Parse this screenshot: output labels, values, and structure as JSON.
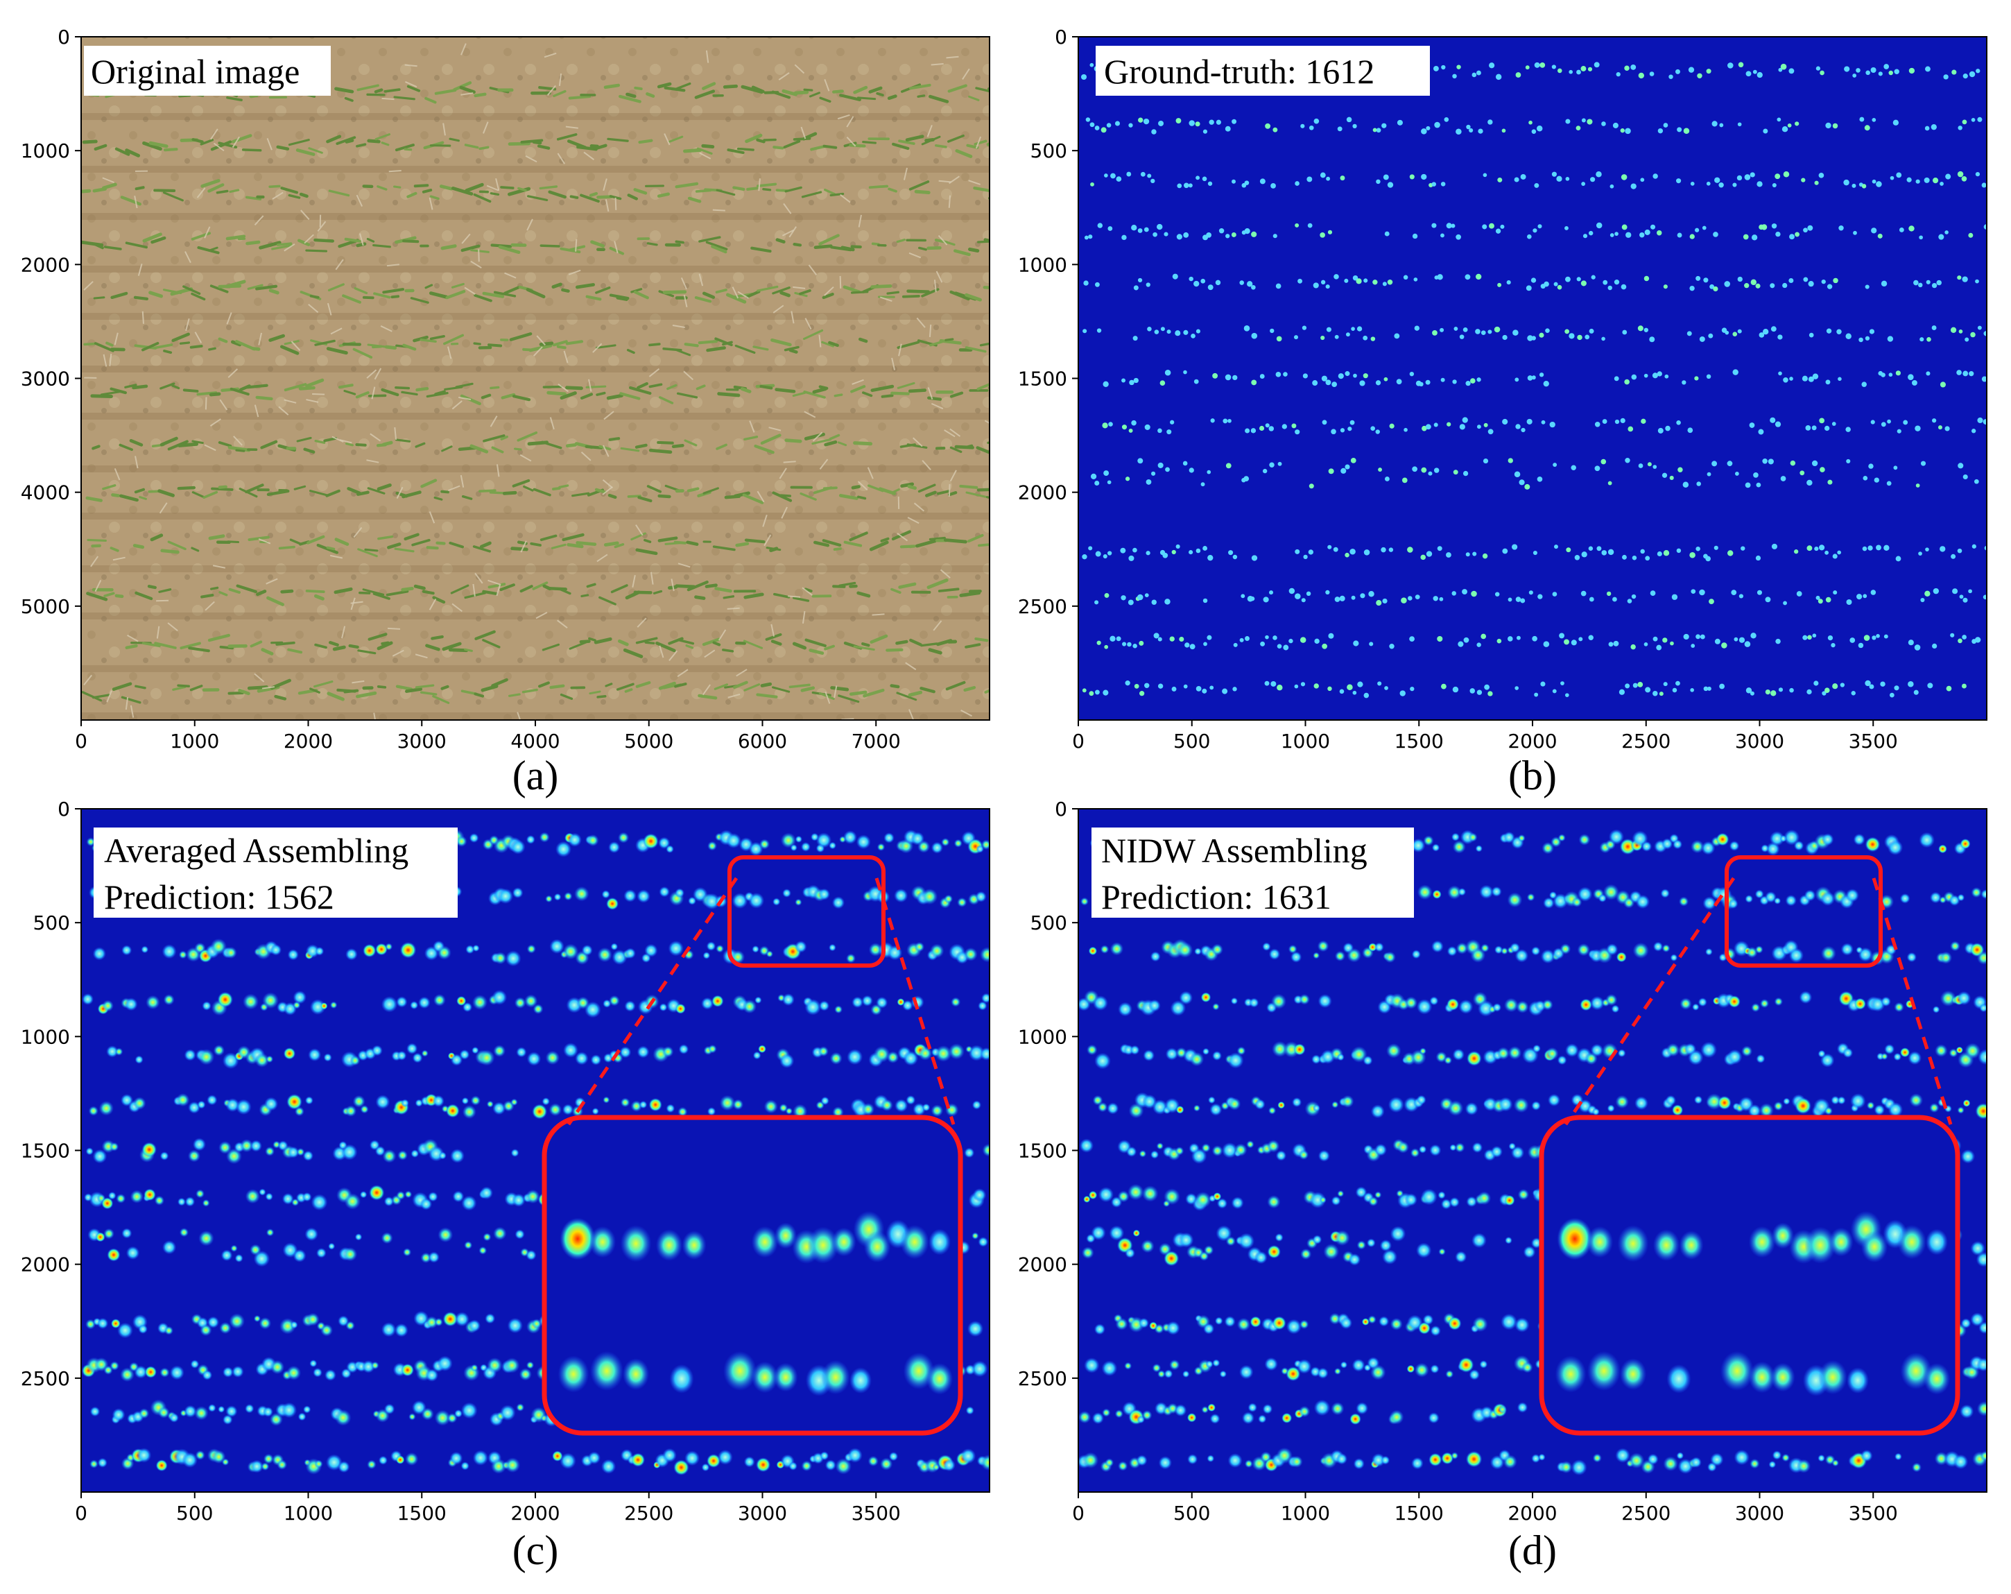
{
  "panels": [
    {
      "id": "a",
      "caption": "(a)",
      "labels": [
        "Original image"
      ],
      "xticks": [
        "0",
        "1000",
        "2000",
        "3000",
        "4000",
        "5000",
        "6000",
        "7000"
      ],
      "yticks": [
        "0",
        "1000",
        "2000",
        "3000",
        "4000",
        "5000"
      ],
      "xmax": 8000,
      "ymax": 6000,
      "xtick_values": [
        0,
        1000,
        2000,
        3000,
        4000,
        5000,
        6000,
        7000
      ],
      "ytick_values": [
        0,
        1000,
        2000,
        3000,
        4000,
        5000
      ]
    },
    {
      "id": "b",
      "caption": "(b)",
      "labels": [
        "Ground-truth: 1612"
      ],
      "xticks": [
        "0",
        "500",
        "1000",
        "1500",
        "2000",
        "2500",
        "3000",
        "3500"
      ],
      "yticks": [
        "0",
        "500",
        "1000",
        "1500",
        "2000",
        "2500"
      ],
      "xmax": 4000,
      "ymax": 3000,
      "xtick_values": [
        0,
        500,
        1000,
        1500,
        2000,
        2500,
        3000,
        3500
      ],
      "ytick_values": [
        0,
        500,
        1000,
        1500,
        2000,
        2500
      ]
    },
    {
      "id": "c",
      "caption": "(c)",
      "labels": [
        "Averaged Assembling",
        "Prediction: 1562"
      ],
      "xticks": [
        "0",
        "500",
        "1000",
        "1500",
        "2000",
        "2500",
        "3000",
        "3500"
      ],
      "yticks": [
        "0",
        "500",
        "1000",
        "1500",
        "2000",
        "2500"
      ],
      "xmax": 4000,
      "ymax": 3000,
      "xtick_values": [
        0,
        500,
        1000,
        1500,
        2000,
        2500,
        3000,
        3500
      ],
      "ytick_values": [
        0,
        500,
        1000,
        1500,
        2000,
        2500
      ]
    },
    {
      "id": "d",
      "caption": "(d)",
      "labels": [
        "NIDW Assembling",
        "Prediction: 1631"
      ],
      "xticks": [
        "0",
        "500",
        "1000",
        "1500",
        "2000",
        "2500",
        "3000",
        "3500"
      ],
      "yticks": [
        "0",
        "500",
        "1000",
        "1500",
        "2000",
        "2500"
      ],
      "xmax": 4000,
      "ymax": 3000,
      "xtick_values": [
        0,
        500,
        1000,
        1500,
        2000,
        2500,
        3000,
        3500
      ],
      "ytick_values": [
        0,
        500,
        1000,
        1500,
        2000,
        2500
      ]
    }
  ],
  "colors": {
    "heatmap_bg": "#0a14b4",
    "highlight": "#ff1a1a",
    "soil": "#b9a27c",
    "crop": "#5f8a3a"
  }
}
